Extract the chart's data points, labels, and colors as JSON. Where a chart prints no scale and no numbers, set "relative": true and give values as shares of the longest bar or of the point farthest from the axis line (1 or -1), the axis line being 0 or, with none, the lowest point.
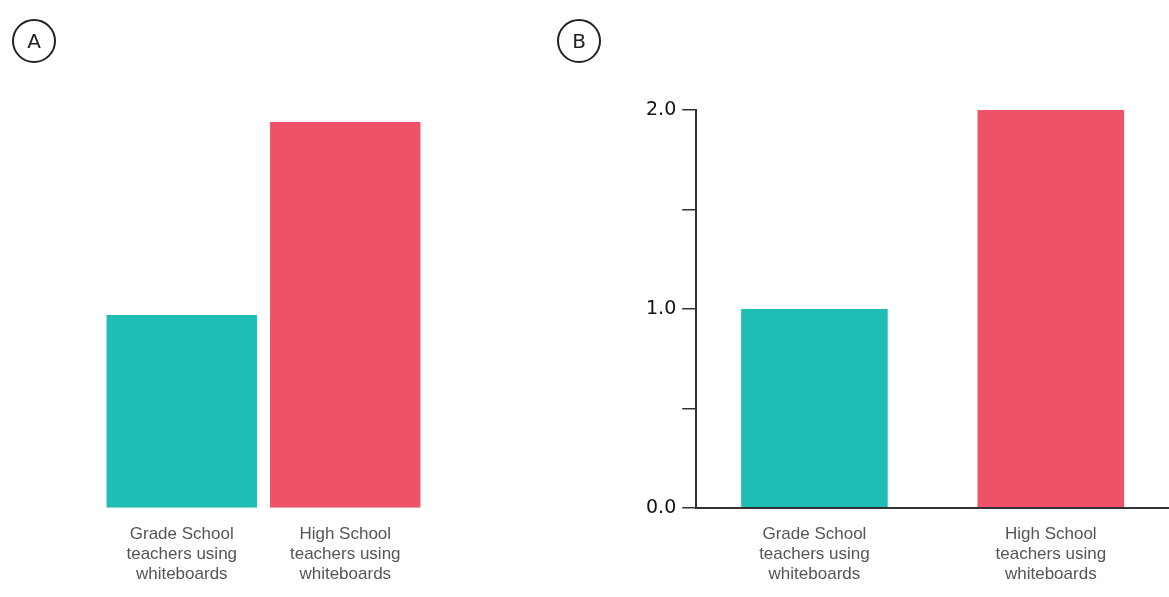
{
  "chart_data": [
    {
      "type": "bar",
      "title": "A",
      "relative": true,
      "categories": [
        "Grade School teachers using whiteboards",
        "High School teachers using whiteboards"
      ],
      "values": [
        0.5,
        1
      ],
      "colors": [
        "#20bdb4",
        "#ef5268"
      ]
    },
    {
      "type": "bar",
      "title": "B",
      "categories": [
        "Grade School teachers using whiteboards",
        "High School teachers using whiteboards"
      ],
      "values": [
        1,
        2
      ],
      "colors": [
        "#20bdb4",
        "#ef5268"
      ],
      "ylim": [
        0,
        2
      ],
      "yticks": [
        {
          "value": 0,
          "label": "0.0"
        },
        {
          "value": 0.5,
          "label": null
        },
        {
          "value": 1,
          "label": "1.0"
        },
        {
          "value": 1.5,
          "label": null
        },
        {
          "value": 2,
          "label": "2.0"
        }
      ]
    }
  ]
}
